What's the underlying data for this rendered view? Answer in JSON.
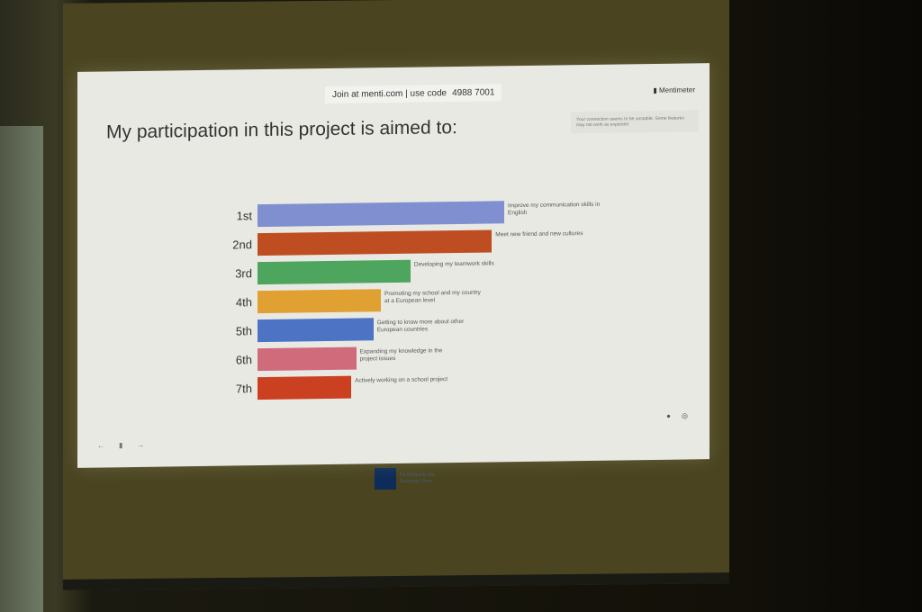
{
  "slide": {
    "join_text": "Join at menti.com | use code",
    "code": "4988 7001",
    "brand": "Mentimeter",
    "notice": "Your connection seems to be unstable. Some features may not work as expected",
    "nav_icons": [
      "arrow-left-icon",
      "menu-icon",
      "arrow-right-icon"
    ],
    "corner_icons": [
      "info-icon",
      "like-icon",
      "comment-icon",
      "person-icon"
    ]
  },
  "footer": {
    "eu_text": "Co-funded by the European Union"
  },
  "chart_data": {
    "type": "bar",
    "orientation": "horizontal",
    "title": "My participation in this project is aimed to:",
    "categories": [
      "1st",
      "2nd",
      "3rd",
      "4th",
      "5th",
      "6th",
      "7th"
    ],
    "labels": [
      "Improve my communication skills in English",
      "Meet new friend and new cultures",
      "Developing my teamwork skills",
      "Promoting my school and my country at a European level",
      "Getting to know more about other European countries",
      "Expanding my knowledge in the project issues",
      "Actively working on a school project"
    ],
    "values": [
      1.0,
      0.95,
      0.62,
      0.5,
      0.47,
      0.4,
      0.38
    ],
    "colors": [
      "#7f8fd0",
      "#bf4d22",
      "#4ea55e",
      "#e0a032",
      "#4d73c4",
      "#d06b7c",
      "#cc4022"
    ]
  }
}
